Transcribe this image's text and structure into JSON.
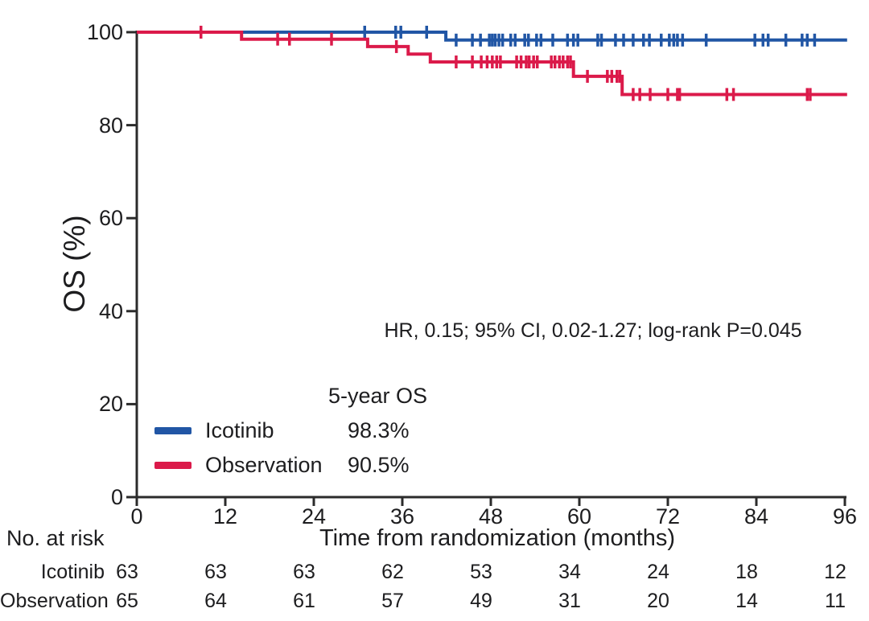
{
  "chart_data": {
    "type": "line",
    "subtype": "kaplan-meier-step",
    "title": "",
    "xlabel": "Time from randomization (months)",
    "ylabel": "OS (%)",
    "xlim": [
      0,
      96
    ],
    "ylim": [
      0,
      100
    ],
    "xticks": [
      0,
      12,
      24,
      36,
      48,
      60,
      72,
      84,
      96
    ],
    "yticks": [
      0,
      20,
      40,
      60,
      80,
      100
    ],
    "grid": false,
    "annotation": "HR, 0.15; 95% CI, 0.02-1.27; log-rank P=0.045",
    "legend": {
      "header": "5-year OS",
      "position": "lower-left-inside",
      "entries": [
        {
          "label": "Icotinib",
          "value": "98.3%",
          "color": "#2156A5"
        },
        {
          "label": "Observation",
          "value": "90.5%",
          "color": "#DB1A4A"
        }
      ]
    },
    "series": [
      {
        "name": "Icotinib",
        "color": "#2156A5",
        "steps": [
          [
            0,
            100
          ],
          [
            41.9,
            100
          ],
          [
            41.9,
            98.3
          ],
          [
            96.3,
            98.3
          ]
        ],
        "censors": [
          [
            30.9,
            100
          ],
          [
            35.1,
            100
          ],
          [
            35.8,
            100
          ],
          [
            39.3,
            100
          ],
          [
            43.3,
            98.3
          ],
          [
            45.5,
            98.3
          ],
          [
            46.6,
            98.3
          ],
          [
            47.8,
            98.3
          ],
          [
            48.2,
            98.3
          ],
          [
            48.6,
            98.3
          ],
          [
            49.1,
            98.3
          ],
          [
            49.6,
            98.3
          ],
          [
            50.7,
            98.3
          ],
          [
            51.3,
            98.3
          ],
          [
            52.6,
            98.3
          ],
          [
            53.1,
            98.3
          ],
          [
            54.2,
            98.3
          ],
          [
            54.8,
            98.3
          ],
          [
            56.4,
            98.3
          ],
          [
            58.4,
            98.3
          ],
          [
            59.2,
            98.3
          ],
          [
            59.8,
            98.3
          ],
          [
            62.5,
            98.3
          ],
          [
            63.0,
            98.3
          ],
          [
            64.9,
            98.3
          ],
          [
            66.0,
            98.3
          ],
          [
            67.3,
            98.3
          ],
          [
            68.7,
            98.3
          ],
          [
            69.5,
            98.3
          ],
          [
            71.1,
            98.3
          ],
          [
            72.2,
            98.3
          ],
          [
            72.8,
            98.3
          ],
          [
            73.3,
            98.3
          ],
          [
            74.0,
            98.3
          ],
          [
            77.2,
            98.3
          ],
          [
            83.8,
            98.3
          ],
          [
            84.9,
            98.3
          ],
          [
            85.6,
            98.3
          ],
          [
            88.0,
            98.3
          ],
          [
            90.2,
            98.3
          ],
          [
            90.9,
            98.3
          ],
          [
            91.9,
            98.3
          ]
        ]
      },
      {
        "name": "Observation",
        "color": "#DB1A4A",
        "steps": [
          [
            0,
            100
          ],
          [
            14.2,
            100
          ],
          [
            14.2,
            98.5
          ],
          [
            31.3,
            98.5
          ],
          [
            31.3,
            96.9
          ],
          [
            36.8,
            96.9
          ],
          [
            36.8,
            95.3
          ],
          [
            39.8,
            95.3
          ],
          [
            39.8,
            93.6
          ],
          [
            59.2,
            93.6
          ],
          [
            59.2,
            90.5
          ],
          [
            65.8,
            90.5
          ],
          [
            65.8,
            86.6
          ],
          [
            96.3,
            86.6
          ]
        ],
        "censors": [
          [
            8.7,
            100
          ],
          [
            19.1,
            98.5
          ],
          [
            20.7,
            98.5
          ],
          [
            26.4,
            98.5
          ],
          [
            35.2,
            96.9
          ],
          [
            43.3,
            93.6
          ],
          [
            45.5,
            93.6
          ],
          [
            46.7,
            93.6
          ],
          [
            47.5,
            93.6
          ],
          [
            48.2,
            93.6
          ],
          [
            48.8,
            93.6
          ],
          [
            49.3,
            93.6
          ],
          [
            51.5,
            93.6
          ],
          [
            52.1,
            93.6
          ],
          [
            52.8,
            93.6
          ],
          [
            53.2,
            93.6
          ],
          [
            53.8,
            93.6
          ],
          [
            54.3,
            93.6
          ],
          [
            56.2,
            93.6
          ],
          [
            56.7,
            93.6
          ],
          [
            57.3,
            93.6
          ],
          [
            57.8,
            93.6
          ],
          [
            58.4,
            93.6
          ],
          [
            58.8,
            93.6
          ],
          [
            61.1,
            90.5
          ],
          [
            63.8,
            90.5
          ],
          [
            64.4,
            90.5
          ],
          [
            65.1,
            90.5
          ],
          [
            65.5,
            90.5
          ],
          [
            67.3,
            86.6
          ],
          [
            68.2,
            86.6
          ],
          [
            69.6,
            86.6
          ],
          [
            72.0,
            86.6
          ],
          [
            73.3,
            86.6
          ],
          [
            73.6,
            86.6
          ],
          [
            80.0,
            86.6
          ],
          [
            80.9,
            86.6
          ],
          [
            90.9,
            86.6
          ],
          [
            91.3,
            86.6
          ]
        ]
      }
    ],
    "risk_table": {
      "label": "No. at risk",
      "times": [
        0,
        12,
        24,
        36,
        48,
        60,
        72,
        84,
        96
      ],
      "rows": [
        {
          "name": "Icotinib",
          "counts": [
            63,
            63,
            63,
            62,
            53,
            34,
            24,
            18,
            12
          ]
        },
        {
          "name": "Observation",
          "counts": [
            65,
            64,
            61,
            57,
            49,
            31,
            20,
            14,
            11
          ]
        }
      ]
    }
  },
  "colors": {
    "icotinib": "#2156A5",
    "observation": "#DB1A4A",
    "axis": "#2b2b2b",
    "text": "#1d1d1f"
  }
}
